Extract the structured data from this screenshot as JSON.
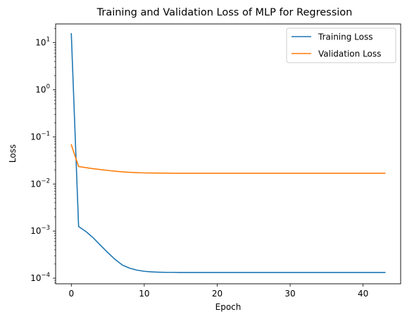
{
  "chart_data": {
    "type": "line",
    "title": "Training and Validation Loss of MLP for Regression",
    "xlabel": "Epoch",
    "ylabel": "Loss",
    "yscale": "log",
    "xlim": [
      -2.15,
      45.15
    ],
    "ylim": [
      7.6e-05,
      25
    ],
    "x_ticks": [
      0,
      10,
      20,
      30,
      40
    ],
    "y_ticks": [
      {
        "value": 0.0001,
        "mantissa": "10",
        "exponent": "−4"
      },
      {
        "value": 0.001,
        "mantissa": "10",
        "exponent": "−3"
      },
      {
        "value": 0.01,
        "mantissa": "10",
        "exponent": "−2"
      },
      {
        "value": 0.1,
        "mantissa": "10",
        "exponent": "−1"
      },
      {
        "value": 1,
        "mantissa": "10",
        "exponent": "0"
      },
      {
        "value": 10,
        "mantissa": "10",
        "exponent": "1"
      }
    ],
    "grid": false,
    "legend_position": "top-right",
    "x": [
      0,
      1,
      2,
      3,
      4,
      5,
      6,
      7,
      8,
      9,
      10,
      11,
      12,
      13,
      14,
      15,
      16,
      17,
      18,
      19,
      20,
      21,
      22,
      23,
      24,
      25,
      26,
      27,
      28,
      29,
      30,
      31,
      32,
      33,
      34,
      35,
      36,
      37,
      38,
      39,
      40,
      41,
      42,
      43
    ],
    "series": [
      {
        "name": "Training Loss",
        "color": "#1f77b4",
        "values": [
          15.5,
          0.00125,
          0.00098,
          0.00072,
          0.0005,
          0.00035,
          0.00025,
          0.00019,
          0.000163,
          0.000148,
          0.00014,
          0.000136,
          0.000134,
          0.000133,
          0.000133,
          0.000132,
          0.000132,
          0.000132,
          0.000132,
          0.000132,
          0.000132,
          0.000132,
          0.000132,
          0.000132,
          0.000132,
          0.000132,
          0.000132,
          0.000132,
          0.000132,
          0.000132,
          0.000132,
          0.000132,
          0.000132,
          0.000132,
          0.000132,
          0.000132,
          0.000132,
          0.000132,
          0.000132,
          0.000132,
          0.000132,
          0.000132,
          0.000132,
          0.000132
        ]
      },
      {
        "name": "Validation Loss",
        "color": "#ff7f0e",
        "values": [
          0.068,
          0.0235,
          0.0222,
          0.0211,
          0.0202,
          0.0194,
          0.0187,
          0.0181,
          0.0177,
          0.0174,
          0.0172,
          0.0171,
          0.017,
          0.017,
          0.0169,
          0.0169,
          0.0169,
          0.0169,
          0.0169,
          0.0169,
          0.0169,
          0.0169,
          0.0169,
          0.0169,
          0.0169,
          0.0169,
          0.0169,
          0.0169,
          0.0169,
          0.0169,
          0.0169,
          0.0169,
          0.0169,
          0.0169,
          0.0169,
          0.0169,
          0.0169,
          0.0169,
          0.0169,
          0.0169,
          0.0169,
          0.0169,
          0.0169,
          0.0169
        ]
      }
    ]
  }
}
